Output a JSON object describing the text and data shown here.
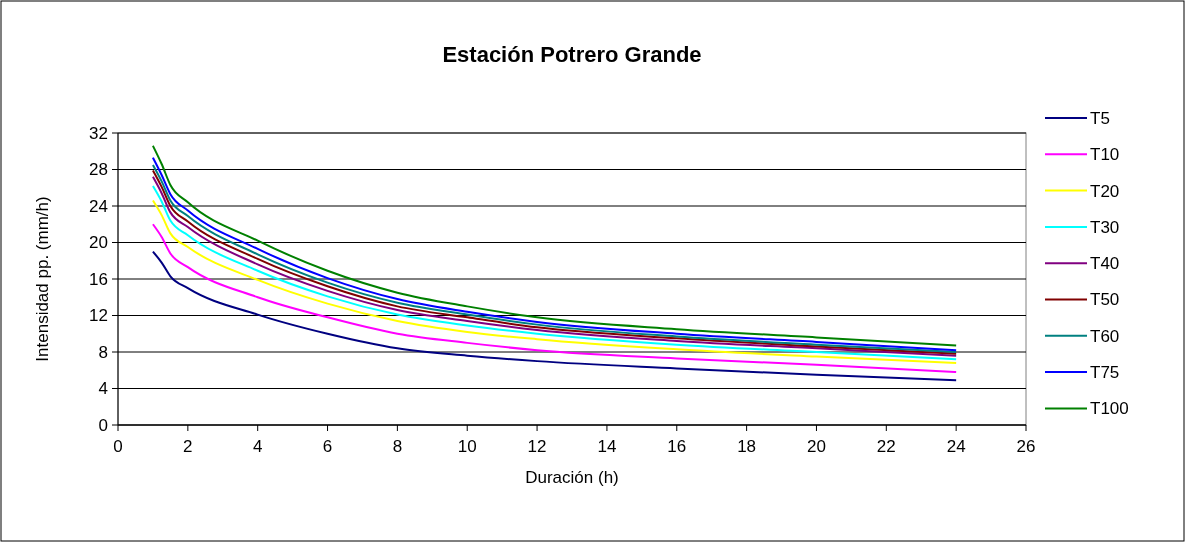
{
  "chart_data": {
    "type": "line",
    "title": "Estación Potrero Grande",
    "xlabel": "Duración (h)",
    "ylabel": "Intensidad pp. (mm/h)",
    "x": [
      1,
      1.25,
      1.5,
      2,
      4,
      6,
      8,
      10,
      12,
      16,
      20,
      24
    ],
    "series": [
      {
        "name": "T5",
        "color": "#000080",
        "values": [
          19.0,
          17.8,
          16.3,
          15.0,
          12.1,
          10.0,
          8.4,
          7.6,
          7.0,
          6.2,
          5.5,
          4.9
        ]
      },
      {
        "name": "T10",
        "color": "#ff00ff",
        "values": [
          22.0,
          20.6,
          18.8,
          17.3,
          14.0,
          11.8,
          10.0,
          9.0,
          8.2,
          7.3,
          6.6,
          5.8
        ]
      },
      {
        "name": "T20",
        "color": "#ffff00",
        "values": [
          24.6,
          23.0,
          21.0,
          19.5,
          15.9,
          13.3,
          11.4,
          10.2,
          9.4,
          8.3,
          7.5,
          6.8
        ]
      },
      {
        "name": "T30",
        "color": "#00ffff",
        "values": [
          26.2,
          24.5,
          22.4,
          20.8,
          16.9,
          14.1,
          12.1,
          10.9,
          10.0,
          8.8,
          8.0,
          7.2
        ]
      },
      {
        "name": "T40",
        "color": "#800080",
        "values": [
          27.2,
          25.4,
          23.3,
          21.7,
          17.6,
          14.7,
          12.6,
          11.4,
          10.4,
          9.2,
          8.4,
          7.6
        ]
      },
      {
        "name": "T50",
        "color": "#800000",
        "values": [
          27.9,
          26.1,
          24.0,
          22.3,
          18.2,
          15.2,
          13.0,
          11.8,
          10.7,
          9.5,
          8.6,
          7.8
        ]
      },
      {
        "name": "T60",
        "color": "#008080",
        "values": [
          28.5,
          26.7,
          24.6,
          22.9,
          18.7,
          15.6,
          13.4,
          12.1,
          11.0,
          9.7,
          8.8,
          8.0
        ]
      },
      {
        "name": "T75",
        "color": "#0000ff",
        "values": [
          29.3,
          27.4,
          25.3,
          23.5,
          19.3,
          16.1,
          13.8,
          12.4,
          11.3,
          10.0,
          9.1,
          8.2
        ]
      },
      {
        "name": "T100",
        "color": "#008000",
        "values": [
          30.6,
          28.6,
          26.3,
          24.4,
          20.2,
          16.9,
          14.5,
          13.0,
          11.8,
          10.5,
          9.6,
          8.7
        ]
      }
    ],
    "xlim": [
      0,
      26
    ],
    "xticks": [
      0,
      2,
      4,
      6,
      8,
      10,
      12,
      14,
      16,
      18,
      20,
      22,
      24,
      26
    ],
    "ylim": [
      0,
      32
    ],
    "yticks": [
      0,
      4,
      8,
      12,
      16,
      20,
      24,
      28,
      32
    ],
    "grid": "y",
    "legend": "right",
    "marker": "none",
    "line_style": "solid"
  }
}
